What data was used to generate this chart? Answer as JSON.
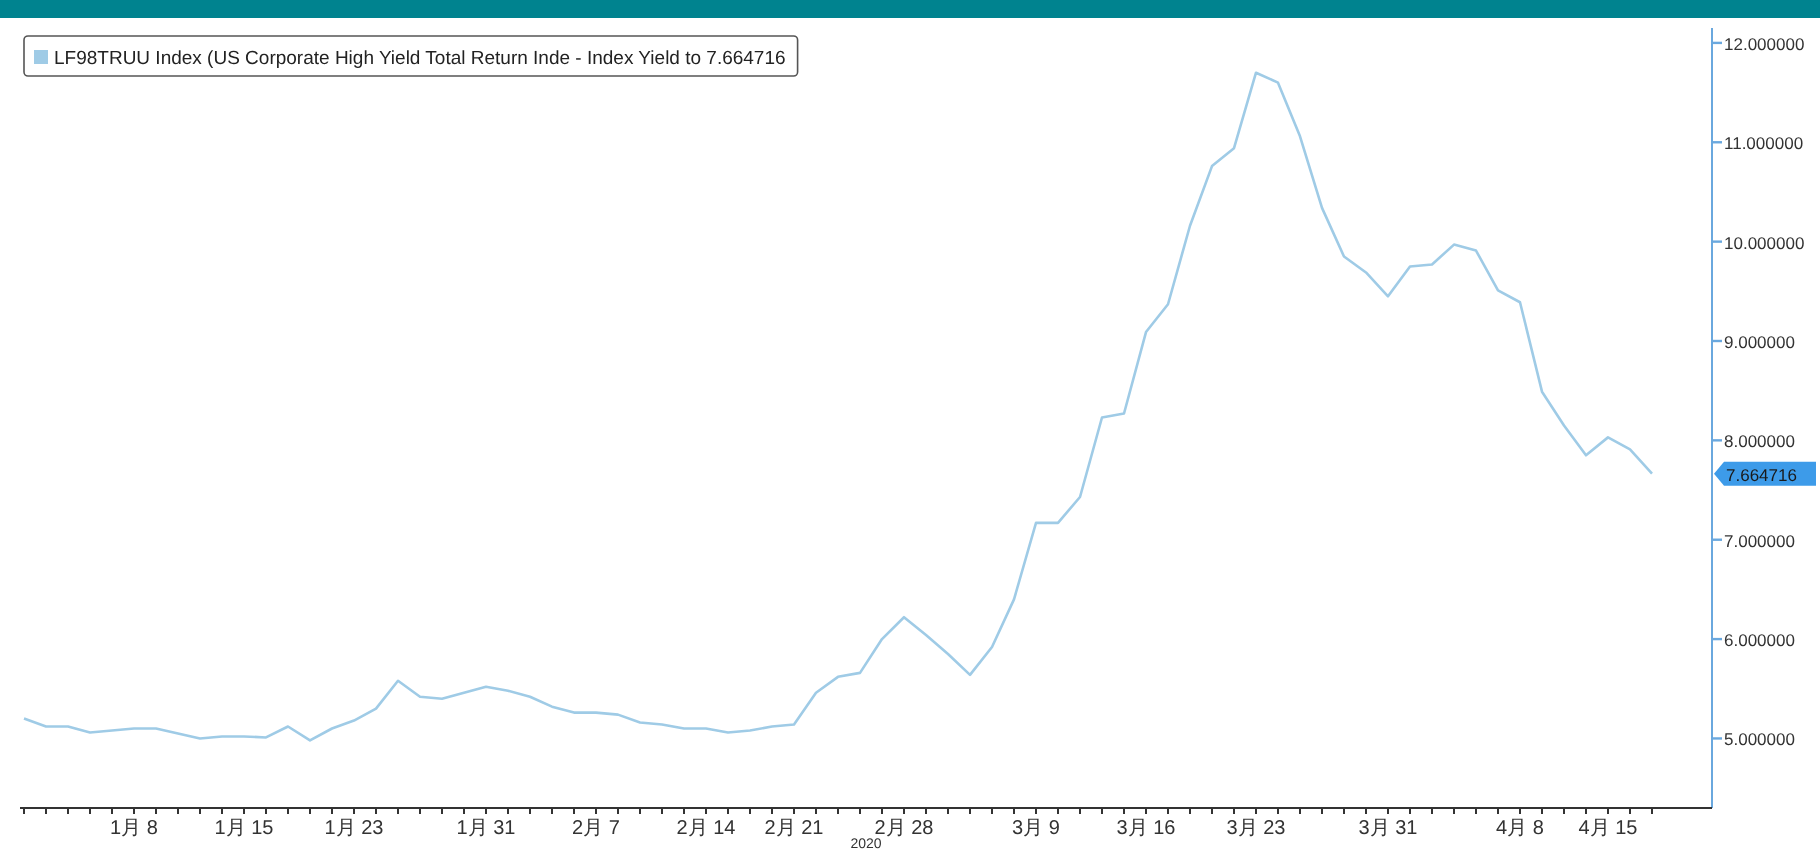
{
  "chart_data": {
    "type": "line",
    "xlabel": "2020",
    "legend": "top left",
    "categories": [
      null,
      null,
      null,
      null,
      null,
      "1月 8",
      null,
      null,
      null,
      null,
      "1月 15",
      null,
      null,
      null,
      null,
      "1月 23",
      null,
      null,
      null,
      null,
      null,
      "1月 31",
      null,
      null,
      null,
      null,
      "2月 7",
      null,
      null,
      null,
      null,
      "2月 14",
      null,
      null,
      null,
      "2月 21",
      null,
      null,
      null,
      null,
      "2月 28",
      null,
      null,
      null,
      null,
      null,
      "3月 9",
      null,
      null,
      null,
      null,
      "3月 16",
      null,
      null,
      null,
      null,
      "3月 23",
      null,
      null,
      null,
      null,
      null,
      "3月 31",
      null,
      null,
      null,
      null,
      null,
      "4月 8",
      null,
      null,
      null,
      "4月 15",
      null,
      null
    ],
    "series": [
      {
        "name": "LF98TRUU Index (US Corporate High Yield Total Return Inde - Index Yield to 7.664716",
        "color": "#9fcbe6",
        "values": [
          5.2,
          5.12,
          5.12,
          5.06,
          5.08,
          5.1,
          5.1,
          5.05,
          5.0,
          5.02,
          5.02,
          5.01,
          5.12,
          4.98,
          5.1,
          5.18,
          5.3,
          5.58,
          5.42,
          5.4,
          5.46,
          5.52,
          5.48,
          5.42,
          5.32,
          5.26,
          5.26,
          5.24,
          5.16,
          5.14,
          5.1,
          5.1,
          5.06,
          5.08,
          5.12,
          5.14,
          5.46,
          5.62,
          5.66,
          6.0,
          6.22,
          6.04,
          5.85,
          5.64,
          5.92,
          6.4,
          7.17,
          7.17,
          7.43,
          8.23,
          8.27,
          9.09,
          9.37,
          10.16,
          10.76,
          10.94,
          11.7,
          11.6,
          11.06,
          10.34,
          9.85,
          9.69,
          9.45,
          9.75,
          9.77,
          9.97,
          9.91,
          9.51,
          9.39,
          8.49,
          8.15,
          7.85,
          8.03,
          7.91,
          7.664716
        ]
      }
    ],
    "ylim": [
      4.3,
      12.15
    ],
    "yticks": [
      {
        "value": 5,
        "label": "5.000000"
      },
      {
        "value": 6,
        "label": "6.000000"
      },
      {
        "value": 7,
        "label": "7.000000"
      },
      {
        "value": 8,
        "label": "8.000000"
      },
      {
        "value": 9,
        "label": "9.000000"
      },
      {
        "value": 10,
        "label": "10.000000"
      },
      {
        "value": 11,
        "label": "11.000000"
      },
      {
        "value": 12,
        "label": "12.000000"
      }
    ],
    "annotations": [
      "7.664716"
    ]
  }
}
